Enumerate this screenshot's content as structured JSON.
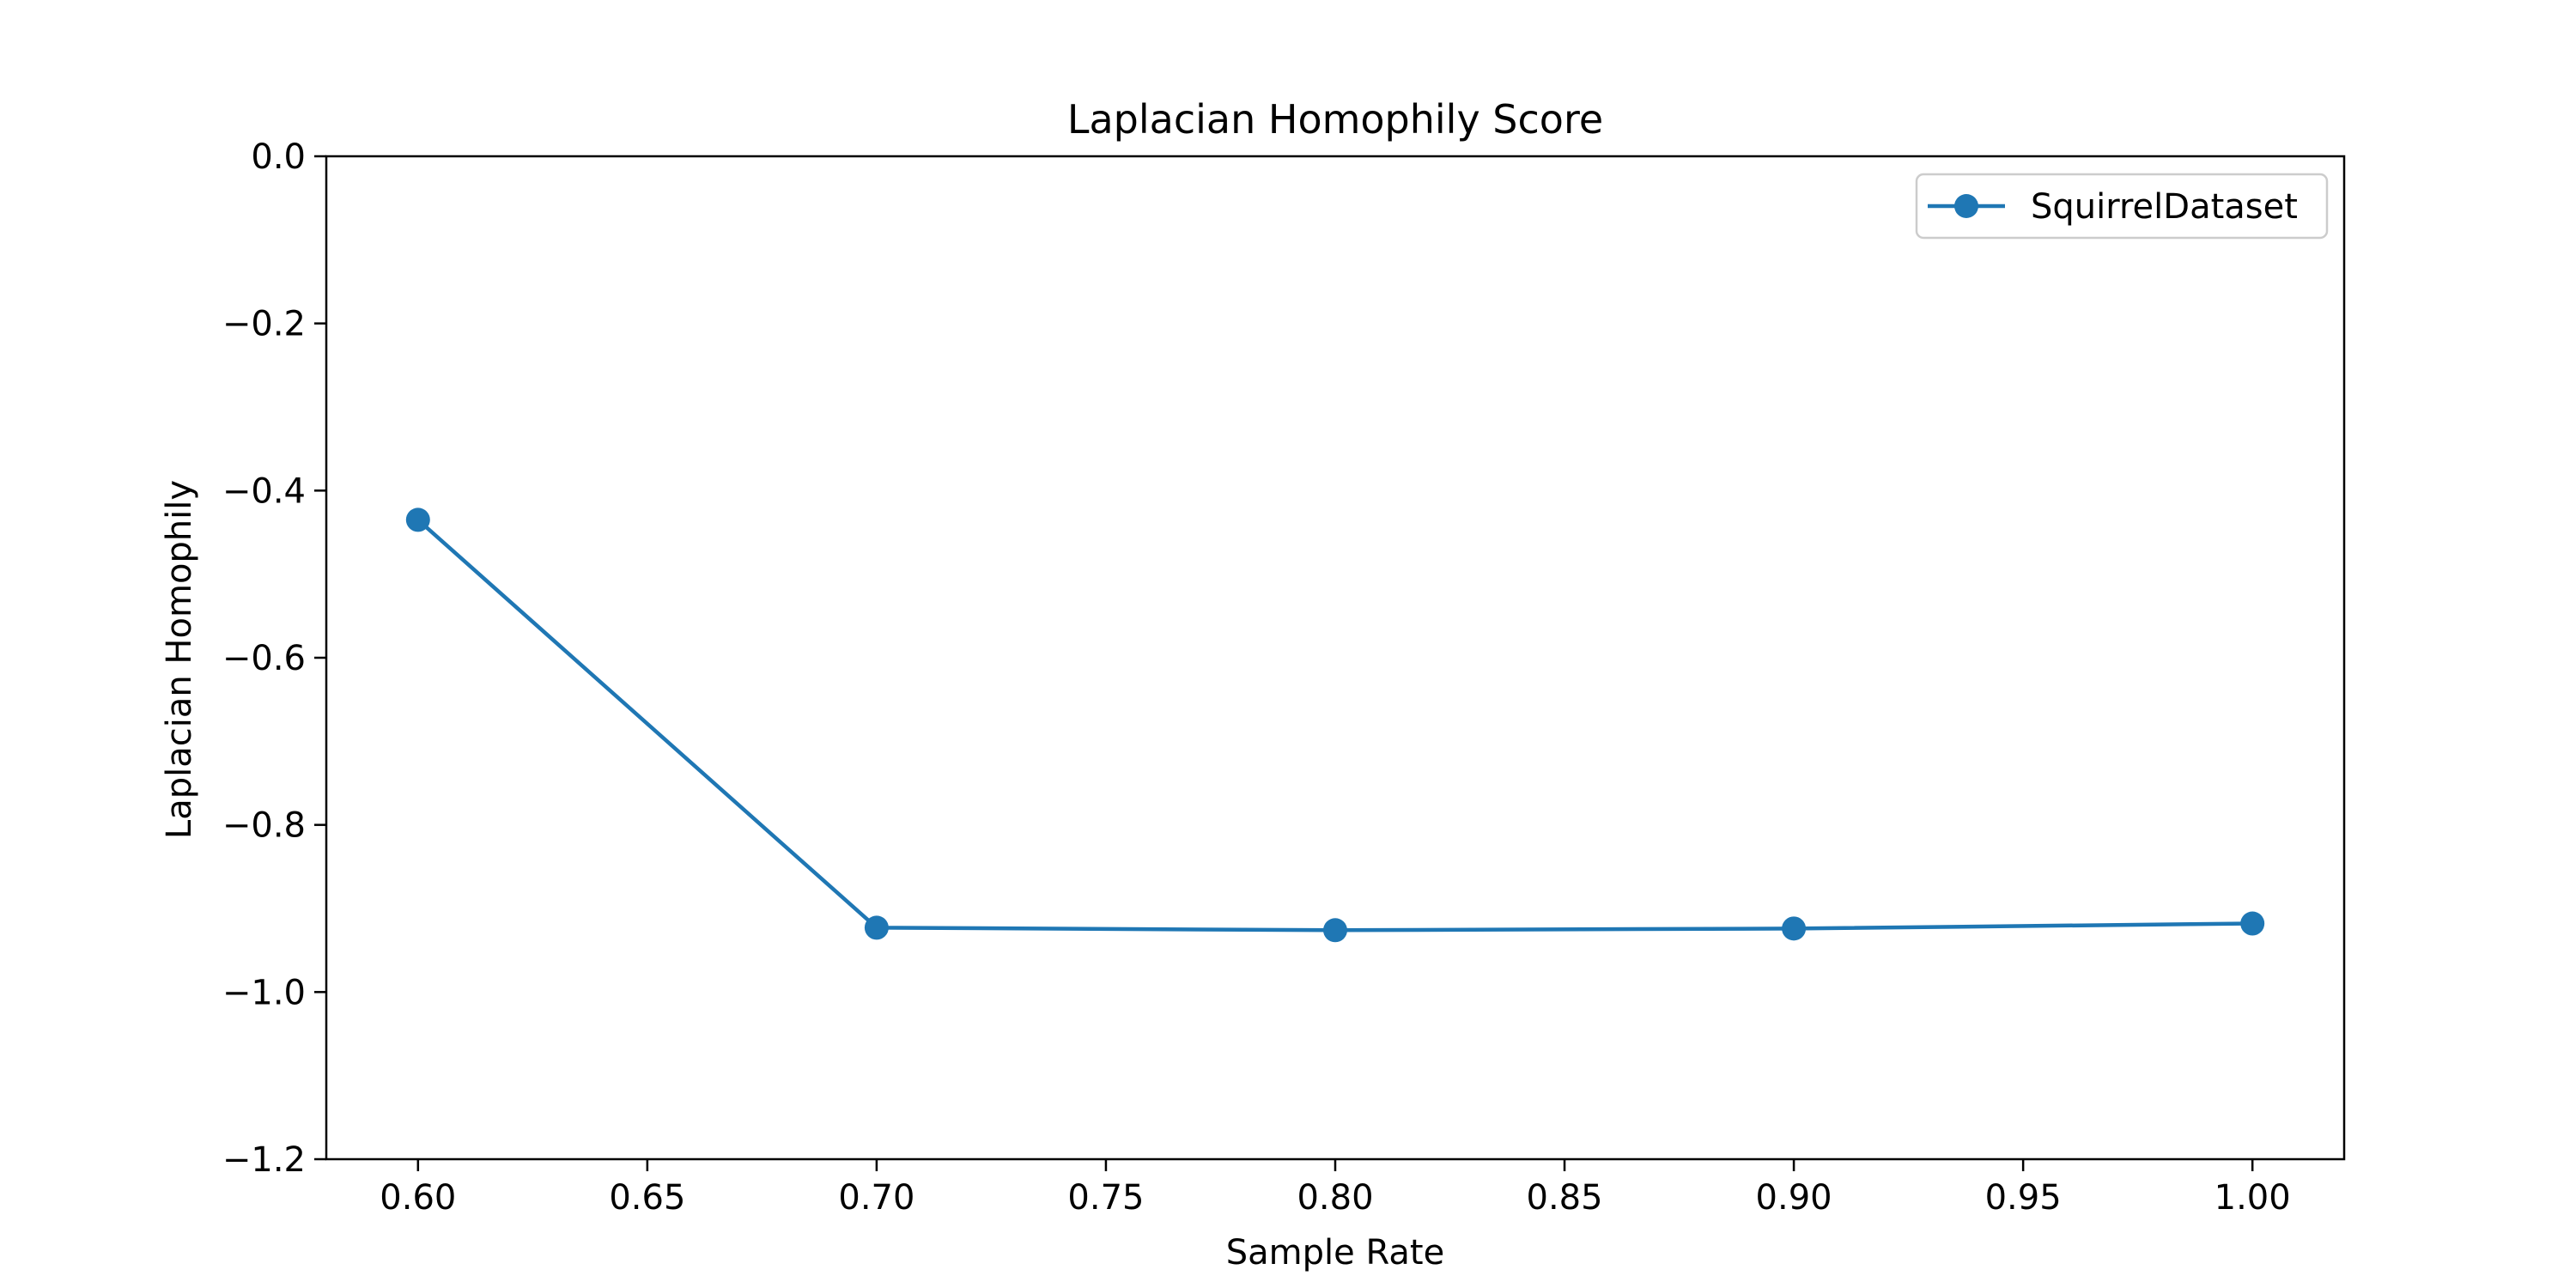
{
  "chart_data": {
    "type": "line",
    "title": "Laplacian Homophily Score",
    "xlabel": "Sample Rate",
    "ylabel": "Laplacian Homophily",
    "xlim": [
      0.58,
      1.02
    ],
    "ylim": [
      -1.2,
      0.0
    ],
    "xticks": [
      0.6,
      0.65,
      0.7,
      0.75,
      0.8,
      0.85,
      0.9,
      0.95,
      1.0
    ],
    "xtick_labels": [
      "0.60",
      "0.65",
      "0.70",
      "0.75",
      "0.80",
      "0.85",
      "0.90",
      "0.95",
      "1.00"
    ],
    "yticks": [
      0.0,
      -0.2,
      -0.4,
      -0.6,
      -0.8,
      -1.0,
      -1.2
    ],
    "ytick_labels": [
      "0.0",
      "−0.2",
      "−0.4",
      "−0.6",
      "−0.8",
      "−1.0",
      "−1.2"
    ],
    "grid": false,
    "legend_position": "top-right",
    "series": [
      {
        "name": "SquirrelDataset",
        "color": "#1f77b4",
        "marker": "circle",
        "x": [
          0.6,
          0.7,
          0.8,
          0.9,
          1.0
        ],
        "y": [
          -0.435,
          -0.923,
          -0.926,
          -0.924,
          -0.918
        ]
      }
    ]
  }
}
